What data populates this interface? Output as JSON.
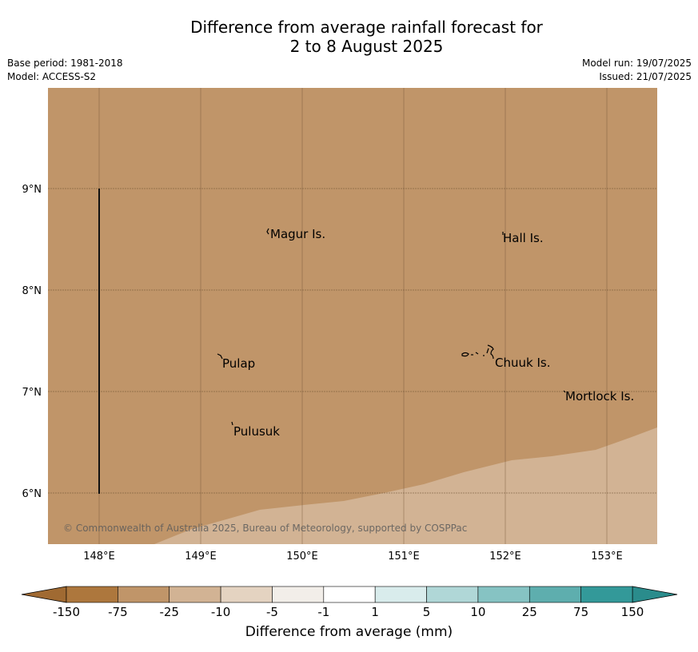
{
  "header": {
    "title_line1": "Difference from average rainfall forecast for",
    "title_line2": "2 to 8 August 2025",
    "base_period": "Base period: 1981-2018",
    "model": "Model: ACCESS-S2",
    "model_run": "Model run: 19/07/2025",
    "issued": "Issued: 21/07/2025"
  },
  "map": {
    "lon_labels": [
      "148°E",
      "149°E",
      "150°E",
      "151°E",
      "152°E",
      "153°E"
    ],
    "lat_labels": [
      "9°N",
      "8°N",
      "7°N",
      "6°N"
    ],
    "dominant_color": "#c09569",
    "lighter_color": "#d2b394",
    "places": [
      {
        "name": "Magur Is."
      },
      {
        "name": "Hall Is."
      },
      {
        "name": "Pulap"
      },
      {
        "name": "Chuuk Is."
      },
      {
        "name": "Mortlock Is."
      },
      {
        "name": "Pulusuk"
      }
    ],
    "copyright": "© Commonwealth of Australia 2025, Bureau of Meteorology, supported by COSPPac"
  },
  "colorbar": {
    "ticks": [
      "-150",
      "-75",
      "-25",
      "-10",
      "-5",
      "-1",
      "1",
      "5",
      "10",
      "25",
      "75",
      "150"
    ],
    "colors": [
      "#ad773d",
      "#c09569",
      "#d2b394",
      "#e4d3c1",
      "#f2eee9",
      "#ffffff",
      "#d9ecec",
      "#b0d7d7",
      "#86c3c3",
      "#5eaeae",
      "#339999"
    ],
    "extend_low_color": "#a06a32",
    "extend_high_color": "#2a8c8c",
    "label": "Difference from average (mm)"
  }
}
